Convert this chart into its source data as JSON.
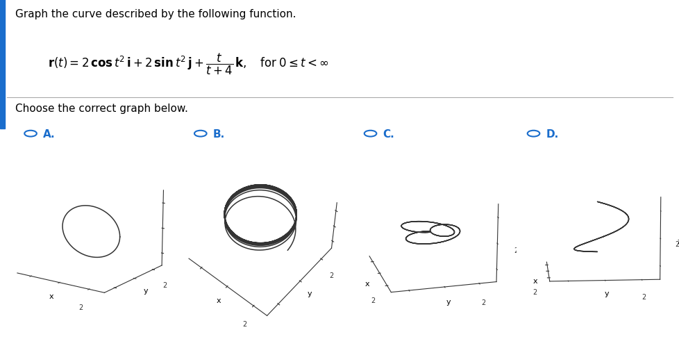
{
  "title_line1": "Graph the curve described by the following function.",
  "subtitle": "Choose the correct graph below.",
  "labels": [
    "A.",
    "B.",
    "C.",
    "D."
  ],
  "background": "#ffffff",
  "text_color": "#000000",
  "label_color": "#1a6dcc",
  "curve_color": "#333333",
  "panels": [
    {
      "elev": 15,
      "azim": -55
    },
    {
      "elev": 55,
      "azim": -50
    },
    {
      "elev": 18,
      "azim": -15
    },
    {
      "elev": 8,
      "azim": -5
    }
  ]
}
